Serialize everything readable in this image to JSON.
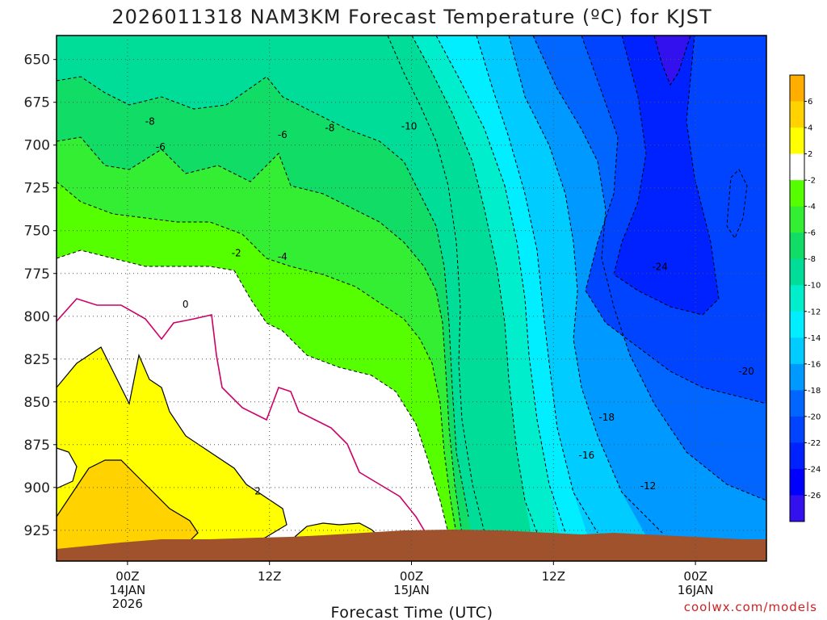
{
  "chart_data": {
    "type": "heatmap",
    "title": "2026011318 NAM3KM Forecast Temperature (ºC) for KJST",
    "xlabel": "Forecast Time (UTC)",
    "ylabel": "",
    "credit": "coolwx.com/models",
    "y_ticks": [
      650,
      675,
      700,
      725,
      750,
      775,
      800,
      825,
      850,
      875,
      900,
      925
    ],
    "y_range_hpa": [
      636,
      943
    ],
    "x_ticks": [
      {
        "hour": 6,
        "lines": [
          "00Z",
          "14JAN",
          "2026"
        ]
      },
      {
        "hour": 18,
        "lines": [
          "12Z"
        ]
      },
      {
        "hour": 30,
        "lines": [
          "00Z",
          "15JAN"
        ]
      },
      {
        "hour": 42,
        "lines": [
          "12Z"
        ]
      },
      {
        "hour": 54,
        "lines": [
          "00Z",
          "16JAN"
        ]
      }
    ],
    "x_range_hours": [
      0,
      60
    ],
    "grid": true,
    "colorbar": {
      "ticks": [
        6,
        4,
        2,
        -2,
        -4,
        -6,
        -8,
        -10,
        -12,
        -14,
        -16,
        -18,
        -20,
        -22,
        -24,
        -26
      ],
      "colors": [
        "#ffae00",
        "#ffd200",
        "#ffff00",
        "#ffffff",
        "#55ff00",
        "#33ee33",
        "#11dd66",
        "#00dd99",
        "#00eecc",
        "#00eeff",
        "#00ccff",
        "#0099ff",
        "#0066ff",
        "#0044ff",
        "#0022ff",
        "#0000ff",
        "#3311ee"
      ]
    },
    "contour_labels": [
      {
        "text": "-8",
        "hour": 7.9,
        "hpa": 688
      },
      {
        "text": "-8",
        "hour": 23.1,
        "hpa": 692
      },
      {
        "text": "-10",
        "hour": 29.8,
        "hpa": 691
      },
      {
        "text": "-6",
        "hour": 8.8,
        "hpa": 703
      },
      {
        "text": "-6",
        "hour": 19.1,
        "hpa": 696
      },
      {
        "text": "-2",
        "hour": 15.2,
        "hpa": 765
      },
      {
        "text": "-4",
        "hour": 19.1,
        "hpa": 767
      },
      {
        "text": "0",
        "hour": 10.9,
        "hpa": 795
      },
      {
        "text": "2",
        "hour": 17.0,
        "hpa": 904
      },
      {
        "text": "-24",
        "hour": 51.0,
        "hpa": 773
      },
      {
        "text": "-20",
        "hour": 58.3,
        "hpa": 834
      },
      {
        "text": "-18",
        "hour": 46.5,
        "hpa": 861
      },
      {
        "text": "-16",
        "hour": 44.8,
        "hpa": 883
      },
      {
        "text": "-12",
        "hour": 50.0,
        "hpa": 901
      }
    ]
  }
}
